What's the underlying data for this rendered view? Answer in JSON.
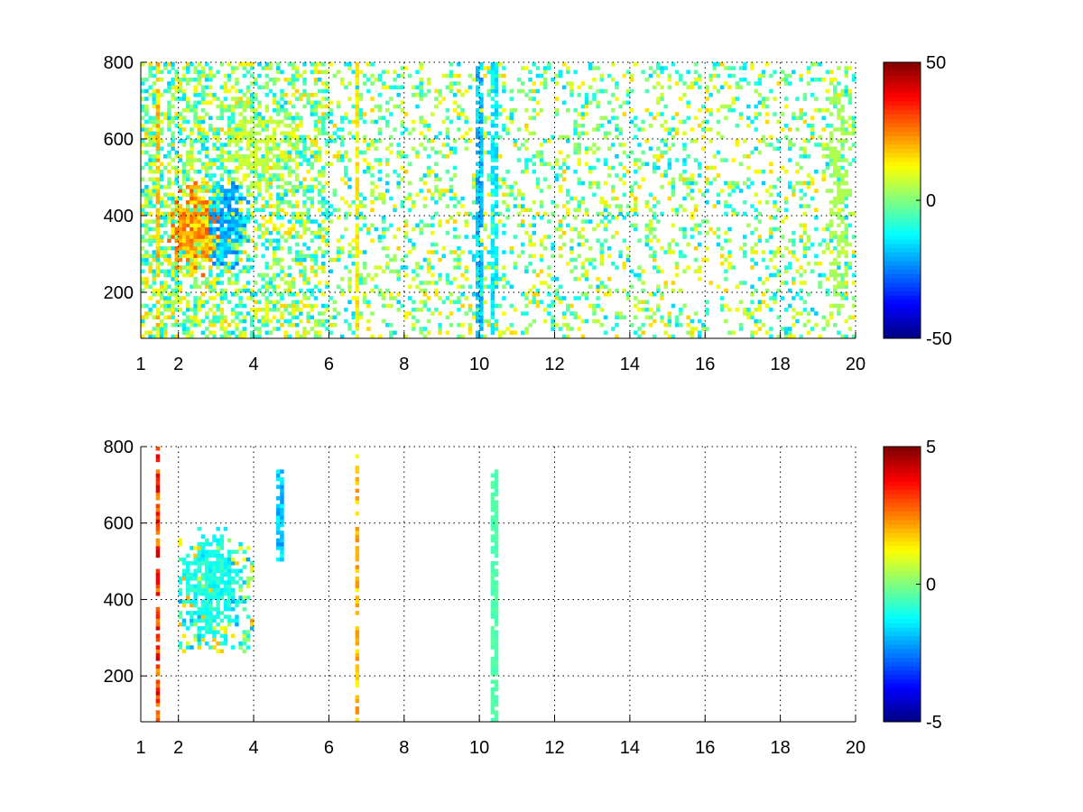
{
  "chart_data": [
    {
      "type": "heatmap",
      "title": "",
      "xlabel": "",
      "ylabel": "",
      "xlim": [
        1,
        20
      ],
      "ylim": [
        80,
        800
      ],
      "x_ticks": [
        1,
        2,
        4,
        6,
        8,
        10,
        12,
        14,
        16,
        18,
        20
      ],
      "x_tick_labels": [
        "1",
        "2",
        "4",
        "6",
        "8",
        "10",
        "12",
        "14",
        "16",
        "18",
        "20"
      ],
      "y_ticks": [
        200,
        400,
        600,
        800
      ],
      "y_tick_labels": [
        "200",
        "400",
        "600",
        "800"
      ],
      "grid": true,
      "grid_style": "dotted",
      "colormap": "jet",
      "clim": [
        -50,
        50
      ],
      "colorbar_ticks": [
        -50,
        0,
        50
      ],
      "colorbar_tick_labels": [
        "-50",
        "0",
        "50"
      ],
      "missing_values": "white",
      "features": [
        {
          "shape": "blob",
          "x": [
            1.7,
            3.2
          ],
          "y": [
            230,
            500
          ],
          "value": 25
        },
        {
          "shape": "blob",
          "x": [
            2.6,
            3.9
          ],
          "y": [
            250,
            520
          ],
          "value": -22
        },
        {
          "shape": "band",
          "x": [
            3.0,
            5.2
          ],
          "y": [
            450,
            700
          ],
          "value": 8
        },
        {
          "shape": "line",
          "x": 1.45,
          "y": [
            80,
            800
          ],
          "value": 20
        },
        {
          "shape": "line",
          "x": 6.75,
          "y": [
            80,
            800
          ],
          "value": 15
        },
        {
          "shape": "line",
          "x": 10.0,
          "y": [
            80,
            800
          ],
          "value": -20
        },
        {
          "shape": "line",
          "x": 10.4,
          "y": [
            80,
            800
          ],
          "value": -15
        },
        {
          "shape": "band",
          "x": [
            19.2,
            19.9
          ],
          "y": [
            80,
            800
          ],
          "value": 5
        }
      ]
    },
    {
      "type": "heatmap",
      "title": "",
      "xlabel": "",
      "ylabel": "",
      "xlim": [
        1,
        20
      ],
      "ylim": [
        80,
        800
      ],
      "x_ticks": [
        1,
        2,
        4,
        6,
        8,
        10,
        12,
        14,
        16,
        18,
        20
      ],
      "x_tick_labels": [
        "1",
        "2",
        "4",
        "6",
        "8",
        "10",
        "12",
        "14",
        "16",
        "18",
        "20"
      ],
      "y_ticks": [
        200,
        400,
        600,
        800
      ],
      "y_tick_labels": [
        "200",
        "400",
        "600",
        "800"
      ],
      "grid": true,
      "grid_style": "dotted",
      "colormap": "jet",
      "clim": [
        -5,
        5
      ],
      "colorbar_ticks": [
        -5,
        0,
        5
      ],
      "colorbar_tick_labels": [
        "-5",
        "0",
        "5"
      ],
      "missing_values": "white",
      "features": [
        {
          "shape": "blob",
          "x": [
            2.0,
            3.8
          ],
          "y": [
            270,
            600
          ],
          "value": -1.2
        },
        {
          "shape": "line",
          "x": 1.45,
          "y": [
            80,
            800
          ],
          "value": 3.5
        },
        {
          "shape": "line",
          "x": 6.75,
          "y": [
            80,
            780
          ],
          "value": 2.0
        },
        {
          "shape": "line",
          "x": 10.4,
          "y": [
            80,
            740
          ],
          "value": -0.5
        },
        {
          "shape": "line",
          "x": 4.7,
          "y": [
            500,
            740
          ],
          "value": -2.0
        }
      ]
    }
  ]
}
